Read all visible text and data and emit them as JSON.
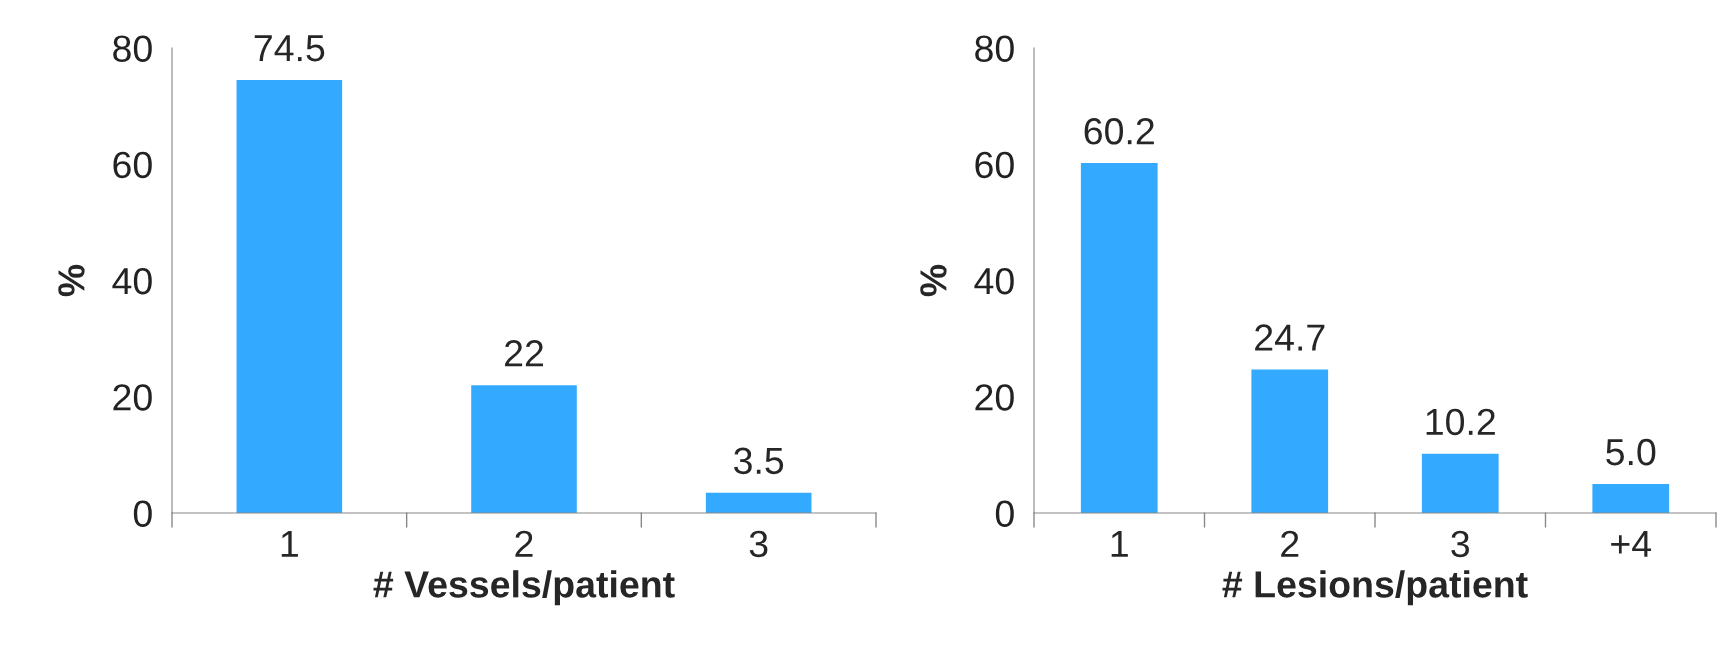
{
  "chart_data": [
    {
      "type": "bar",
      "categories": [
        "1",
        "2",
        "3"
      ],
      "values": [
        74.5,
        22,
        3.5
      ],
      "color": "#33aaff",
      "xlabel": "# Vessels/patient",
      "ylabel": "%",
      "ylim": [
        0,
        80
      ],
      "yticks": [
        0,
        20,
        40,
        60,
        80
      ],
      "data_labels": true,
      "grid": false,
      "legend": false
    },
    {
      "type": "bar",
      "categories": [
        "1",
        "2",
        "3",
        "+4"
      ],
      "values": [
        60.2,
        24.7,
        10.2,
        5.0
      ],
      "value_labels": [
        "60.2",
        "24.7",
        "10.2",
        "5.0"
      ],
      "color": "#33aaff",
      "xlabel": "# Lesions/patient",
      "ylabel": "%",
      "ylim": [
        0,
        80
      ],
      "yticks": [
        0,
        20,
        40,
        60,
        80
      ],
      "grid": false,
      "legend": false
    }
  ]
}
